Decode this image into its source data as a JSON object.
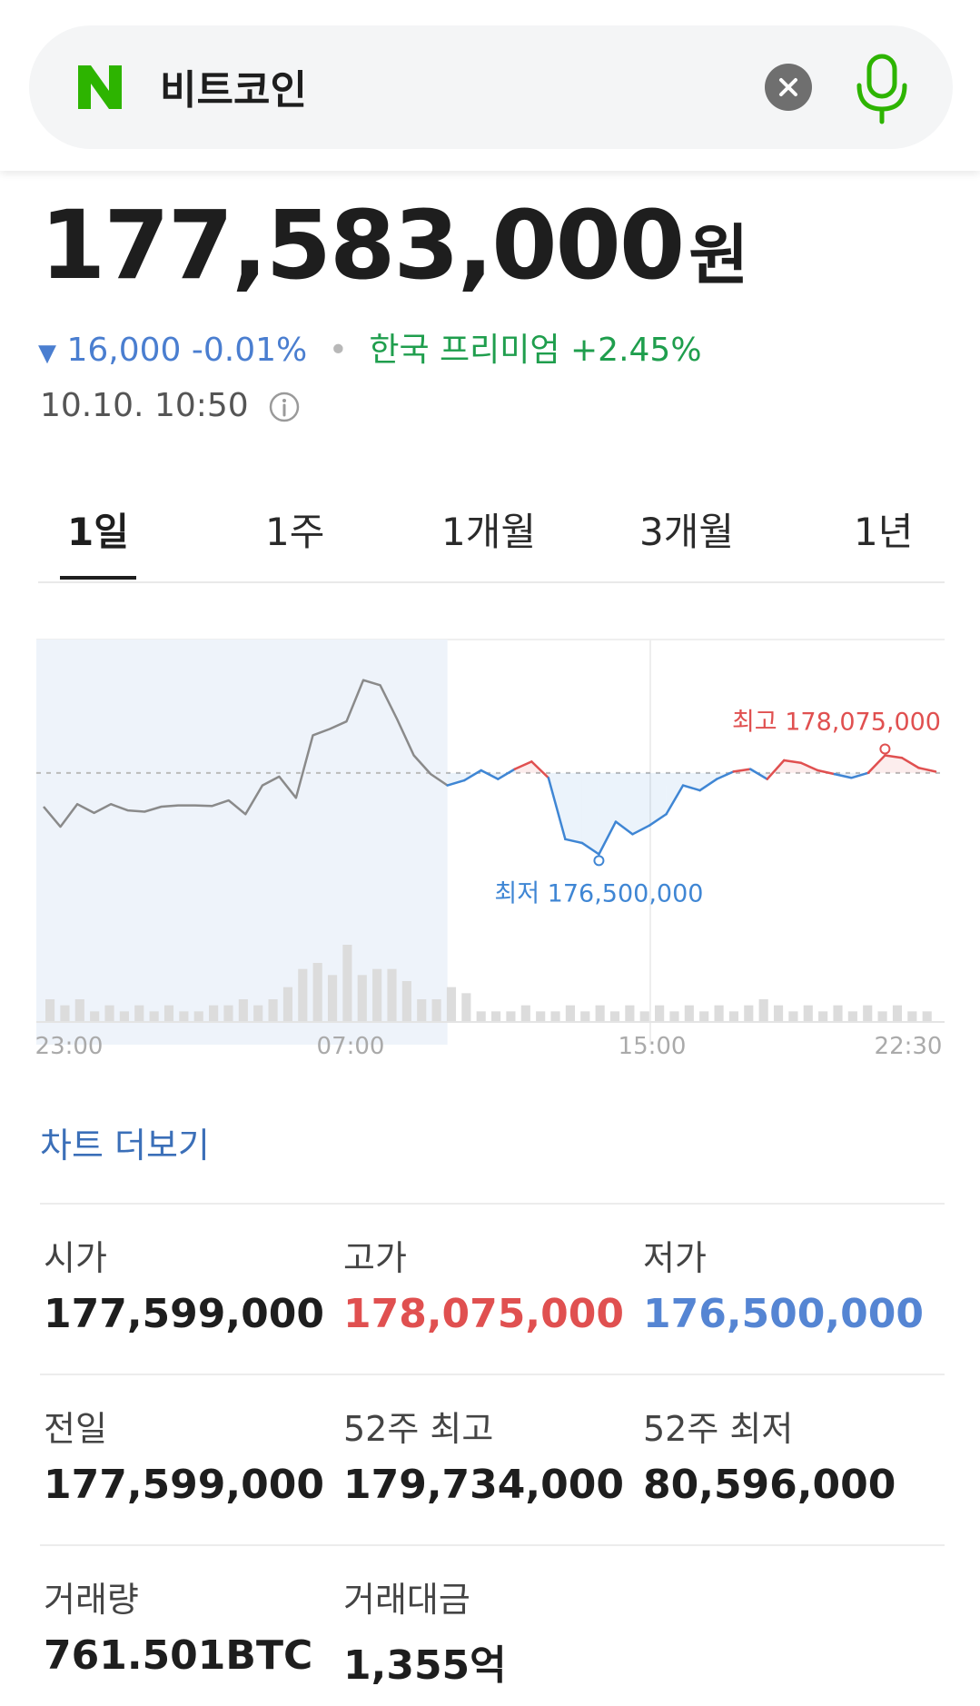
{
  "search": {
    "query": "비트코인"
  },
  "quote": {
    "price": "177,583,000",
    "unit": "원",
    "change_abs": "16,000",
    "change_pct": "-0.01%",
    "premium_label": "한국 프리미엄",
    "premium_value": "+2.45%",
    "timestamp": "10.10. 10:50"
  },
  "tabs": [
    {
      "label": "1일",
      "active": true
    },
    {
      "label": "1주"
    },
    {
      "label": "1개월"
    },
    {
      "label": "3개월"
    },
    {
      "label": "1년"
    }
  ],
  "chart_data": {
    "type": "line",
    "title": "",
    "x_tick_labels": [
      "23:00",
      "07:00",
      "15:00",
      "22:30"
    ],
    "reference_line": 177599000,
    "high_label": "최고 178,075,000",
    "low_label": "최저 176,500,000",
    "high": 178075000,
    "low": 176500000,
    "ylim": [
      176300000,
      178650000
    ],
    "colors": {
      "history": "#8a8a8a",
      "above": "#e05050",
      "below": "#3f86d4",
      "shade": "#eef3fa"
    },
    "series": [
      {
        "values": [
          177330000,
          177170000,
          177350000,
          177280000,
          177350000,
          177300000,
          177290000,
          177330000,
          177340000,
          177340000,
          177335000,
          177380000,
          177270000,
          177500000,
          177570000,
          177400000,
          177900000,
          177950000,
          178010000,
          178340000,
          178300000,
          178030000,
          177740000,
          177590000,
          177500000,
          177540000,
          177620000,
          177550000,
          177630000,
          177690000,
          177560000,
          177070000,
          177040000,
          176950000,
          177210000,
          177110000,
          177180000,
          177270000,
          177500000,
          177460000,
          177550000,
          177610000,
          177630000,
          177550000,
          177700000,
          177680000,
          177620000,
          177590000,
          177560000,
          177600000,
          177740000,
          177720000,
          177640000,
          177610000
        ]
      }
    ],
    "volume": [
      3,
      2,
      3,
      1,
      2,
      1,
      2,
      1,
      2,
      1,
      1,
      2,
      2,
      3,
      2,
      3,
      5,
      8,
      9,
      7,
      12,
      7,
      8,
      8,
      6,
      3,
      3,
      5,
      4,
      1,
      1,
      1,
      2,
      1,
      1,
      2,
      1,
      2,
      1,
      2,
      1,
      2,
      1,
      2,
      1,
      2,
      1,
      2,
      3,
      2,
      1,
      2,
      1,
      2,
      1,
      2,
      1,
      2,
      1,
      1
    ]
  },
  "more_chart": "차트 더보기",
  "stats": [
    {
      "label": "시가",
      "value": "177,599,000",
      "tone": "normal"
    },
    {
      "label": "고가",
      "value": "178,075,000",
      "tone": "red"
    },
    {
      "label": "저가",
      "value": "176,500,000",
      "tone": "blue"
    },
    {
      "label": "전일",
      "value": "177,599,000",
      "tone": "normal"
    },
    {
      "label": "52주 최고",
      "value": "179,734,000",
      "tone": "normal"
    },
    {
      "label": "52주 최저",
      "value": "80,596,000",
      "tone": "normal"
    },
    {
      "label": "거래량",
      "value": "761.501BTC",
      "tone": "normal"
    },
    {
      "label": "거래대금",
      "value": "1,355억",
      "tone": "normal"
    }
  ]
}
